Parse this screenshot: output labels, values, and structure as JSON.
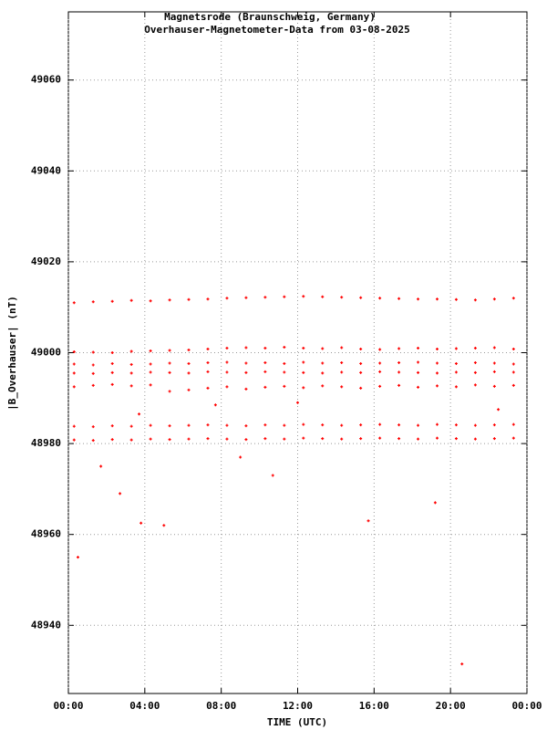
{
  "chart_data": {
    "type": "scatter",
    "title": "Magnetsrode (Braunschweig, Germany)",
    "subtitle": "Overhauser-Magnetometer-Data from 03-08-2025",
    "x_label": "TIME (UTC)",
    "y_label": "|B_Overhauser| (nT)",
    "color": "#ff0000",
    "grid": true,
    "xlim": [
      0,
      24
    ],
    "ylim": [
      48925,
      49075
    ],
    "xticks": [
      {
        "value": 0,
        "label": "00:00"
      },
      {
        "value": 4,
        "label": "04:00"
      },
      {
        "value": 8,
        "label": "08:00"
      },
      {
        "value": 12,
        "label": "12:00"
      },
      {
        "value": 16,
        "label": "16:00"
      },
      {
        "value": 20,
        "label": "20:00"
      },
      {
        "value": 24,
        "label": "00:00"
      }
    ],
    "yticks": [
      48940,
      48960,
      48980,
      49000,
      49020,
      49040,
      49060
    ],
    "x": [
      0.3,
      1.3,
      2.3,
      3.3,
      4.3,
      5.3,
      6.3,
      7.3,
      8.3,
      9.3,
      10.3,
      11.3,
      12.3,
      13.3,
      14.3,
      15.3,
      16.3,
      17.3,
      18.3,
      19.3,
      20.3,
      21.3,
      22.3,
      23.3
    ],
    "series": [
      {
        "values": [
          49011,
          49011.2,
          49011.3,
          49011.5,
          49011.4,
          49011.6,
          49011.7,
          49011.8,
          49012,
          49012.1,
          49012.2,
          49012.3,
          49012.4,
          49012.3,
          49012.2,
          49012.1,
          49012,
          49011.9,
          49011.8,
          49011.8,
          49011.7,
          49011.6,
          49011.8,
          49012
        ]
      },
      {
        "values": [
          49000.2,
          49000.1,
          49000,
          49000.3,
          49000.4,
          49000.5,
          49000.6,
          49000.8,
          49001,
          49001.1,
          49001,
          49001.2,
          49001,
          49000.9,
          49001.1,
          49000.8,
          49000.7,
          49000.9,
          49001,
          49000.8,
          49000.9,
          49001,
          49001.1,
          49000.8
        ]
      },
      {
        "values": [
          48997.5,
          48997.3,
          48997.6,
          48997.4,
          48997.5,
          48997.7,
          48997.6,
          48997.8,
          48997.9,
          48997.7,
          48997.8,
          48997.6,
          48997.9,
          48997.7,
          48997.8,
          48997.6,
          48997.7,
          48997.8,
          48997.9,
          48997.7,
          48997.6,
          48997.8,
          48997.7,
          48997.5
        ]
      },
      {
        "values": [
          48995.5,
          48995.4,
          48995.6,
          48995.5,
          48995.7,
          48995.6,
          48995.5,
          48995.8,
          48995.7,
          48995.6,
          48995.8,
          48995.7,
          48995.6,
          48995.5,
          48995.7,
          48995.6,
          48995.8,
          48995.7,
          48995.6,
          48995.5,
          48995.7,
          48995.6,
          48995.8,
          48995.7
        ]
      },
      {
        "values": [
          48992.5,
          48992.8,
          48993,
          48992.7,
          48992.9,
          48991.5,
          48991.8,
          48992.2,
          48992.5,
          48992,
          48992.4,
          48992.6,
          48992.3,
          48992.7,
          48992.5,
          48992.2,
          48992.6,
          48992.8,
          48992.4,
          48992.7,
          48992.5,
          48992.9,
          48992.6,
          48992.8
        ]
      },
      {
        "values": [
          48983.8,
          48983.7,
          48983.9,
          48983.8,
          48984,
          48983.9,
          48984,
          48984.1,
          48984,
          48983.9,
          48984.1,
          48984,
          48984.2,
          48984.1,
          48984,
          48984.1,
          48984.2,
          48984.1,
          48984,
          48984.2,
          48984.1,
          48984,
          48984.1,
          48984.2
        ]
      },
      {
        "values": [
          48980.8,
          48980.7,
          48980.9,
          48980.8,
          48981,
          48980.9,
          48981,
          48981.1,
          48981,
          48980.9,
          48981.1,
          48981,
          48981.2,
          48981.1,
          48981,
          48981.1,
          48981.2,
          48981.1,
          48981,
          48981.2,
          48981.1,
          48981,
          48981.1,
          48981.2
        ]
      },
      {
        "x": [
          0.5,
          1.7,
          2.7,
          3.8,
          5.0,
          9.0,
          10.7,
          15.7,
          19.2,
          20.6,
          3.7,
          12.0,
          22.5,
          7.7
        ],
        "values": [
          48955,
          48975,
          48969,
          48962.5,
          48962,
          48977,
          48973,
          48963,
          48967,
          48931.5,
          48986.5,
          48989,
          48987.5,
          48988.5
        ]
      }
    ]
  }
}
